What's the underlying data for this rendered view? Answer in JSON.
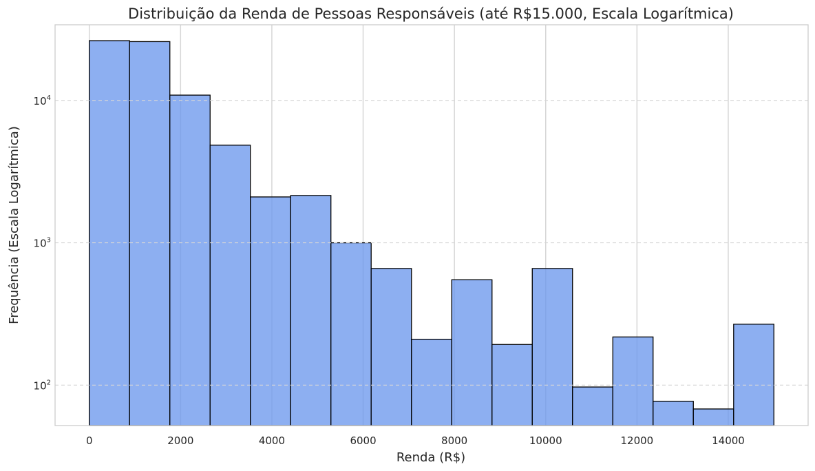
{
  "chart_data": {
    "type": "bar",
    "title": "Distribuição da Renda de Pessoas Responsáveis (até R$15.000, Escala Logarítmica)",
    "xlabel": "Renda (R$)",
    "ylabel": "Frequência (Escala Logarítmica)",
    "xlim": [
      -750,
      15750
    ],
    "ylim": [
      52,
      34000
    ],
    "yscale": "log",
    "xticks": [
      0,
      2000,
      4000,
      6000,
      8000,
      10000,
      12000,
      14000
    ],
    "xtick_labels": [
      "0",
      "2000",
      "4000",
      "6000",
      "8000",
      "10000",
      "12000",
      "14000"
    ],
    "yticks": [
      100,
      1000,
      10000
    ],
    "ytick_labels": [
      {
        "base": "10",
        "exp": "2"
      },
      {
        "base": "10",
        "exp": "3"
      },
      {
        "base": "10",
        "exp": "4"
      }
    ],
    "grid": true,
    "bins": [
      {
        "x0": 0,
        "x1": 882,
        "count": 26300
      },
      {
        "x0": 882,
        "x1": 1765,
        "count": 25900
      },
      {
        "x0": 1765,
        "x1": 2647,
        "count": 10900
      },
      {
        "x0": 2647,
        "x1": 3529,
        "count": 4850
      },
      {
        "x0": 3529,
        "x1": 4412,
        "count": 2100
      },
      {
        "x0": 4412,
        "x1": 5294,
        "count": 2150
      },
      {
        "x0": 5294,
        "x1": 6176,
        "count": 1000
      },
      {
        "x0": 6176,
        "x1": 7059,
        "count": 660
      },
      {
        "x0": 7059,
        "x1": 7941,
        "count": 210
      },
      {
        "x0": 7941,
        "x1": 8824,
        "count": 550
      },
      {
        "x0": 8824,
        "x1": 9706,
        "count": 193
      },
      {
        "x0": 9706,
        "x1": 10588,
        "count": 660
      },
      {
        "x0": 10588,
        "x1": 11471,
        "count": 97
      },
      {
        "x0": 11471,
        "x1": 12353,
        "count": 218
      },
      {
        "x0": 12353,
        "x1": 13235,
        "count": 77
      },
      {
        "x0": 13235,
        "x1": 14118,
        "count": 68
      },
      {
        "x0": 14118,
        "x1": 15000,
        "count": 268
      }
    ],
    "colors": {
      "bar_fill": "#6d98ed",
      "bar_edge": "#000000",
      "grid": "#d6d6d6",
      "frame": "#cccccc"
    }
  }
}
